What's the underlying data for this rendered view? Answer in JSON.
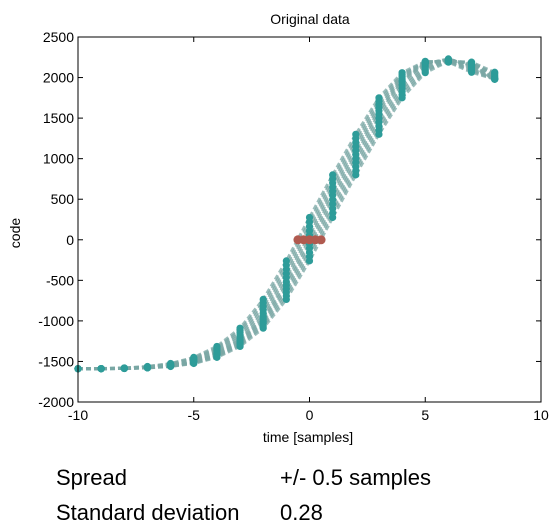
{
  "chart_data": {
    "type": "scatter",
    "title": "Original data",
    "xlabel": "time [samples]",
    "ylabel": "code",
    "xlim": [
      -10,
      10
    ],
    "ylim": [
      -2000,
      2500
    ],
    "xticks": [
      "-10",
      "-5",
      "0",
      "5",
      "10"
    ],
    "yticks": [
      "-2000",
      "-1500",
      "-1000",
      "-500",
      "0",
      "500",
      "1000",
      "1500",
      "2000",
      "2500"
    ],
    "grid": false,
    "series": [
      {
        "color": "#2e9c99",
        "x": [
          -10,
          -9,
          -8,
          -7,
          -6,
          -5,
          -4,
          -3,
          -2,
          -1,
          0,
          1,
          2,
          3,
          4,
          5,
          6,
          7,
          8
        ],
        "values": [
          -1590,
          -1590,
          -1585,
          -1575,
          -1550,
          -1500,
          -1400,
          -1230,
          -950,
          -520,
          0,
          550,
          1050,
          1550,
          1950,
          2170,
          2230,
          2150,
          1980
        ]
      },
      {
        "color": "#b05a4f",
        "x": [
          -0.5,
          -0.25,
          0,
          0.25,
          0.5
        ],
        "values": [
          0,
          0,
          0,
          0,
          0
        ]
      }
    ]
  },
  "info": {
    "spread_label": "Spread",
    "spread_value": "+/- 0.5 samples",
    "std_label": "Standard deviation",
    "std_value": "0.28"
  }
}
